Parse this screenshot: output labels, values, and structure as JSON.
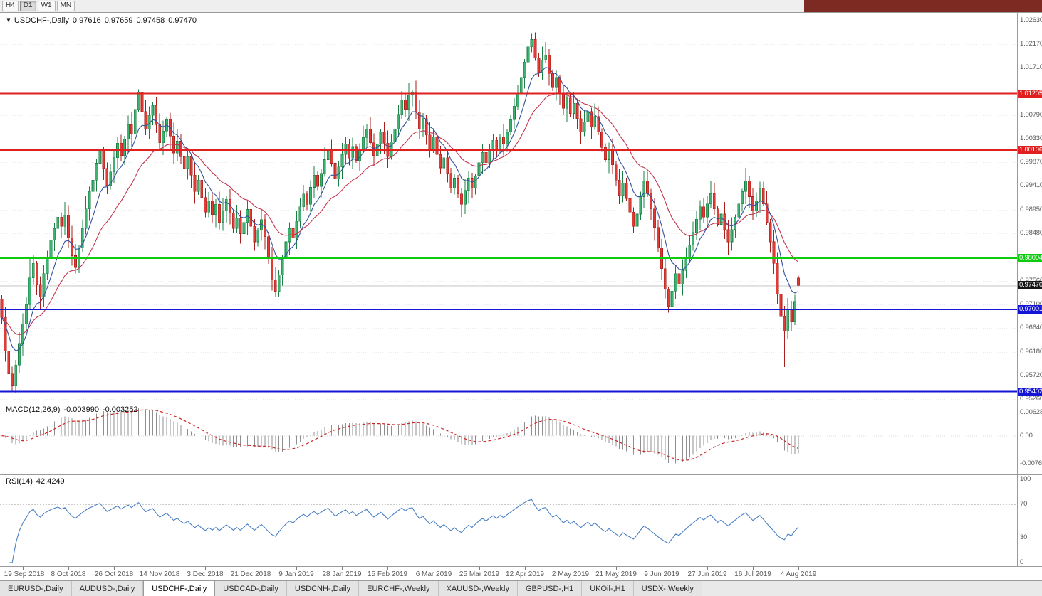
{
  "toolbar": {
    "timeframes": [
      "H4",
      "D1",
      "W1",
      "MN"
    ],
    "active": "D1",
    "right_block_color": "#7d2a22"
  },
  "chart": {
    "marker": "▼",
    "symbol_label": "USDCHF-,Daily",
    "open": "0.97616",
    "high": "0.97659",
    "low": "0.97458",
    "close": "0.97470"
  },
  "chart_data": {
    "type": "candlestick",
    "symbol": "USDCHF",
    "timeframe": "Daily",
    "ohlc_current": {
      "open": 0.97616,
      "high": 0.97659,
      "low": 0.97458,
      "close": 0.9747
    },
    "price_axis": {
      "min": 0.9519,
      "max": 1.0278,
      "labels": [
        "1.02630",
        "1.02170",
        "1.01710",
        "1.00790",
        "1.00330",
        "0.99870",
        "0.99410",
        "0.98950",
        "0.98480",
        "0.97560",
        "0.97100",
        "0.96640",
        "0.96180",
        "0.95720",
        "0.95260"
      ]
    },
    "x_labels": [
      "19 Sep 2018",
      "8 Oct 2018",
      "26 Oct 2018",
      "14 Nov 2018",
      "3 Dec 2018",
      "21 Dec 2018",
      "9 Jan 2019",
      "28 Jan 2019",
      "15 Feb 2019",
      "6 Mar 2019",
      "25 Mar 2019",
      "12 Apr 2019",
      "2 May 2019",
      "21 May 2019",
      "9 Jun 2019",
      "27 Jun 2019",
      "16 Jul 2019",
      "4 Aug 2019"
    ],
    "bars_before_first_label": 6,
    "bars_per_label": 13,
    "right_pad_bars": 62,
    "closes": [
      0.9685,
      0.962,
      0.9575,
      0.9551,
      0.9592,
      0.9634,
      0.9672,
      0.971,
      0.9762,
      0.979,
      0.9748,
      0.9725,
      0.977,
      0.9802,
      0.9836,
      0.9858,
      0.988,
      0.9862,
      0.9884,
      0.984,
      0.9805,
      0.9782,
      0.982,
      0.9858,
      0.9896,
      0.993,
      0.9952,
      0.9985,
      1.0008,
      0.9975,
      0.9942,
      0.9968,
      0.9996,
      1.0024,
      1.0,
      1.0032,
      1.006,
      1.0042,
      1.009,
      1.0124,
      1.0086,
      1.0052,
      1.0078,
      1.0098,
      1.006,
      1.0025,
      1.0048,
      1.007,
      1.0038,
      1.0005,
      1.0028,
      0.9998,
      0.9975,
      0.9998,
      0.9962,
      0.993,
      0.9952,
      0.9918,
      0.989,
      0.9912,
      0.9885,
      0.9905,
      0.987,
      0.9892,
      0.9915,
      0.9888,
      0.9858,
      0.9878,
      0.9848,
      0.987,
      0.9895,
      0.9862,
      0.9832,
      0.9855,
      0.9875,
      0.9842,
      0.98,
      0.9758,
      0.9735,
      0.9768,
      0.98,
      0.9832,
      0.9858,
      0.984,
      0.9872,
      0.99,
      0.9925,
      0.9905,
      0.9938,
      0.9962,
      0.994,
      0.9965,
      0.9992,
      1.0012,
      0.9985,
      0.9955,
      0.9978,
      1.0002,
      1.0022,
      0.9995,
      1.0018,
      0.999,
      1.0012,
      1.0035,
      1.0052,
      1.0025,
      1.0,
      1.0022,
      1.0046,
      1.0024,
      0.9998,
      1.0026,
      1.0052,
      1.008,
      1.0108,
      1.009,
      1.0118,
      1.0124,
      1.0085,
      1.0052,
      1.0072,
      1.004,
      1.0012,
      1.0036,
      1.0002,
      0.9976,
      0.9996,
      0.9965,
      0.9936,
      0.9956,
      0.9925,
      0.9905,
      0.9932,
      0.9956,
      0.9936,
      0.996,
      0.9986,
      1.0006,
      0.9986,
      1.001,
      1.003,
      1.0012,
      1.0036,
      1.0022,
      1.0046,
      1.007,
      1.0096,
      1.0122,
      1.0152,
      1.0182,
      1.0212,
      1.0226,
      1.019,
      1.0162,
      1.0186,
      1.0196,
      1.016,
      1.0132,
      1.0152,
      1.0122,
      1.0092,
      1.0112,
      1.0082,
      1.0102,
      1.0072,
      1.0046,
      1.0066,
      1.0086,
      1.0056,
      1.0076,
      1.0046,
      1.0016,
      0.9992,
      1.0012,
      0.9982,
      0.9952,
      0.9922,
      0.9946,
      0.9916,
      0.989,
      0.9862,
      0.9886,
      0.992,
      0.995,
      0.9926,
      0.9896,
      0.986,
      0.982,
      0.978,
      0.974,
      0.9706,
      0.9736,
      0.977,
      0.975,
      0.9776,
      0.98,
      0.9826,
      0.985,
      0.9876,
      0.99,
      0.988,
      0.9906,
      0.9926,
      0.9896,
      0.9866,
      0.9886,
      0.9856,
      0.9832,
      0.9856,
      0.988,
      0.9906,
      0.993,
      0.995,
      0.992,
      0.9892,
      0.9912,
      0.9936,
      0.9906,
      0.987,
      0.9832,
      0.979,
      0.973,
      0.9686,
      0.9658,
      0.97,
      0.9676,
      0.9716,
      0.9747
    ],
    "wick_overrides": {
      "3": {
        "l": 0.9541
      },
      "8": {
        "h": 0.98
      },
      "39": {
        "h": 1.0129
      },
      "93": {
        "h": 1.0032
      },
      "115": {
        "h": 1.012
      },
      "117": {
        "h": 1.0128
      },
      "151": {
        "h": 1.0237
      },
      "154": {
        "h": 1.0212
      },
      "190": {
        "l": 0.9694
      },
      "212": {
        "h": 0.9976
      },
      "223": {
        "l": 0.9588
      },
      "225": {
        "l": 0.9659
      }
    },
    "levels": [
      {
        "value": 1.01205,
        "label": "1.01205",
        "color": "#e01f1f"
      },
      {
        "value": 1.00106,
        "label": "1.00106",
        "color": "#e01f1f"
      },
      {
        "value": 0.98004,
        "label": "0.98004",
        "color": "#0ecb0e"
      },
      {
        "value": 0.97001,
        "label": "0.97001",
        "color": "#1515d6"
      },
      {
        "value": 0.95402,
        "label": "0.95402",
        "color": "#1515d6"
      }
    ],
    "current_price": {
      "value": 0.9747,
      "label": "0.97470",
      "badge_color": "#141414",
      "line_color": "#c4c4c4"
    },
    "colors": {
      "bull": "#3cb371",
      "bull_border": "#1b7f45",
      "bear": "#e23b35",
      "bear_border": "#a81f1b",
      "ma_fast": "#31519e",
      "ma_slow": "#c3334d",
      "grid": "#ebebeb"
    },
    "ma_periods": {
      "fast": 8,
      "slow": 21
    },
    "macd": {
      "label": "MACD(12,26,9)",
      "value_main": "-0.003990",
      "value_signal": "-0.003252",
      "fast": 12,
      "slow": 26,
      "signal": 9,
      "axis_labels": [
        {
          "text": "0.006286",
          "value": 0.006286
        },
        {
          "text": "0.00",
          "value": 0
        },
        {
          "text": "-0.00762",
          "value": -0.00762
        }
      ],
      "scale_max": 0.0088,
      "scale_min": -0.0105,
      "hist_color": "#8f8f8f",
      "signal_color": "#cc2727"
    },
    "rsi": {
      "label": "RSI(14)",
      "value": "42.4249",
      "period": 14,
      "axis_labels": [
        {
          "text": "100",
          "value": 100
        },
        {
          "text": "70",
          "value": 70
        },
        {
          "text": "30",
          "value": 30
        },
        {
          "text": "0",
          "value": 0
        }
      ],
      "levels": [
        70,
        30
      ],
      "line_color": "#4a80c4",
      "level_line_color": "#c9c9c9"
    }
  },
  "tabs": {
    "active_index": 2,
    "items": [
      "EURUSD-,Daily",
      "AUDUSD-,Daily",
      "USDCHF-,Daily",
      "USDCAD-,Daily",
      "USDCNH-,Daily",
      "EURCHF-,Weekly",
      "XAUUSD-,Weekly",
      "GBPUSD-,H1",
      "UKOil-,H1",
      "USDX-,Weekly"
    ]
  }
}
